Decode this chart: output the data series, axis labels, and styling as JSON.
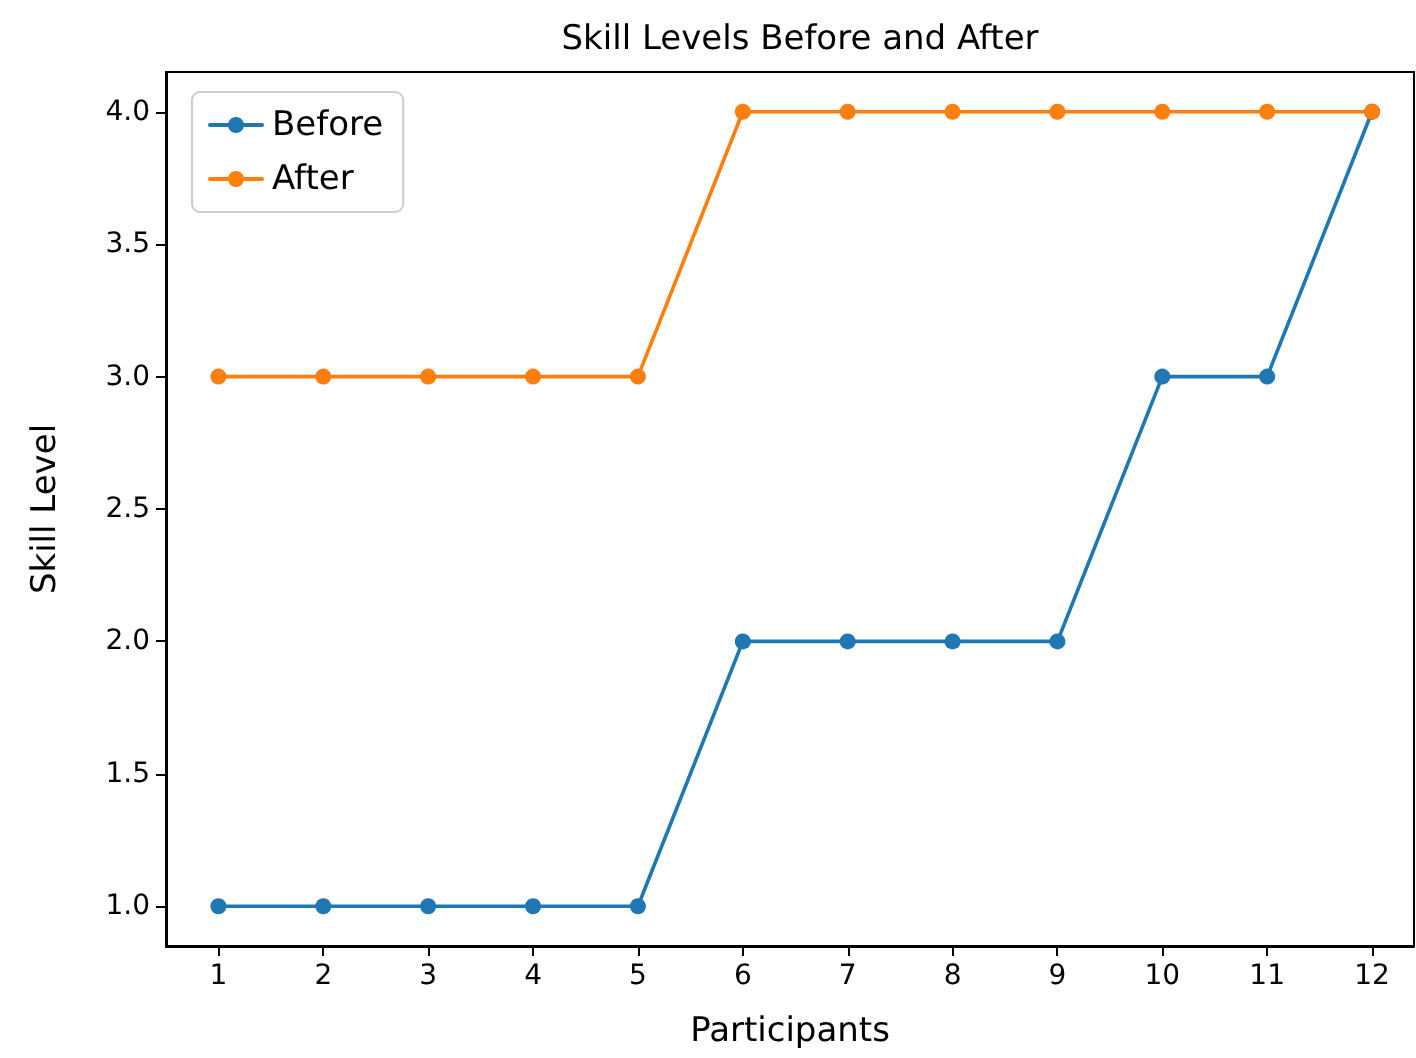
{
  "chart_data": {
    "type": "line",
    "title": "Skill Levels Before and After",
    "xlabel": "Participants",
    "ylabel": "Skill Level",
    "x": [
      1,
      2,
      3,
      4,
      5,
      6,
      7,
      8,
      9,
      10,
      11,
      12
    ],
    "xlim": [
      0.5,
      12.4
    ],
    "xticks": [
      1,
      2,
      3,
      4,
      5,
      6,
      7,
      8,
      9,
      10,
      11,
      12
    ],
    "series": [
      {
        "name": "Before",
        "color": "#1f77b4",
        "values": [
          1,
          1,
          1,
          1,
          1,
          2,
          2,
          2,
          2,
          3,
          3,
          4
        ]
      },
      {
        "name": "After",
        "color": "#ff7f0e",
        "values": [
          3,
          3,
          3,
          3,
          3,
          4,
          4,
          4,
          4,
          4,
          4,
          4
        ]
      }
    ],
    "ylim": [
      0.85,
      4.15
    ],
    "yticks": [
      {
        "value": 1,
        "label": "1.0"
      },
      {
        "value": 1.5,
        "label": "1.5"
      },
      {
        "value": 2,
        "label": "2.0"
      },
      {
        "value": 2.5,
        "label": "2.5"
      },
      {
        "value": 3,
        "label": "3.0"
      },
      {
        "value": 3.5,
        "label": "3.5"
      },
      {
        "value": 4,
        "label": "4.0"
      }
    ],
    "legend": "top left",
    "marker": "circle",
    "line_style": "solid",
    "grid": false
  }
}
